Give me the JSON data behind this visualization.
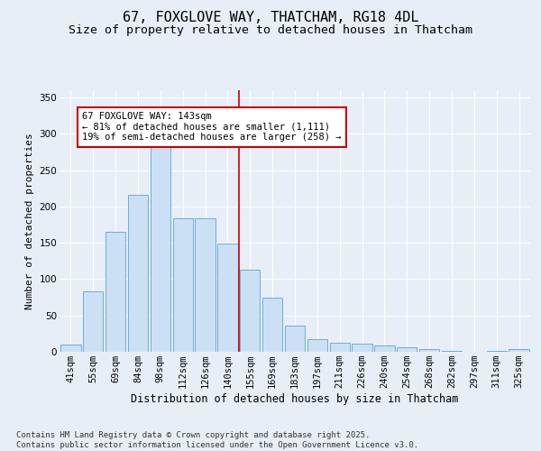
{
  "title": "67, FOXGLOVE WAY, THATCHAM, RG18 4DL",
  "subtitle": "Size of property relative to detached houses in Thatcham",
  "xlabel": "Distribution of detached houses by size in Thatcham",
  "ylabel": "Number of detached properties",
  "bar_color": "#cce0f5",
  "bar_edge_color": "#6baed6",
  "categories": [
    "41sqm",
    "55sqm",
    "69sqm",
    "84sqm",
    "98sqm",
    "112sqm",
    "126sqm",
    "140sqm",
    "155sqm",
    "169sqm",
    "183sqm",
    "197sqm",
    "211sqm",
    "226sqm",
    "240sqm",
    "254sqm",
    "268sqm",
    "282sqm",
    "297sqm",
    "311sqm",
    "325sqm"
  ],
  "values": [
    10,
    83,
    165,
    216,
    283,
    184,
    184,
    149,
    113,
    75,
    36,
    18,
    13,
    11,
    9,
    6,
    4,
    1,
    0,
    1,
    4
  ],
  "vline_color": "#cc0000",
  "annotation_text": "67 FOXGLOVE WAY: 143sqm\n← 81% of detached houses are smaller (1,111)\n19% of semi-detached houses are larger (258) →",
  "annotation_box_color": "#ffffff",
  "annotation_box_edge": "#cc0000",
  "ylim": [
    0,
    360
  ],
  "yticks": [
    0,
    50,
    100,
    150,
    200,
    250,
    300,
    350
  ],
  "background_color": "#e8eef8",
  "footer_text": "Contains HM Land Registry data © Crown copyright and database right 2025.\nContains public sector information licensed under the Open Government Licence v3.0.",
  "title_fontsize": 11,
  "subtitle_fontsize": 9.5,
  "xlabel_fontsize": 8.5,
  "ylabel_fontsize": 8,
  "tick_fontsize": 7.5,
  "footer_fontsize": 6.5
}
